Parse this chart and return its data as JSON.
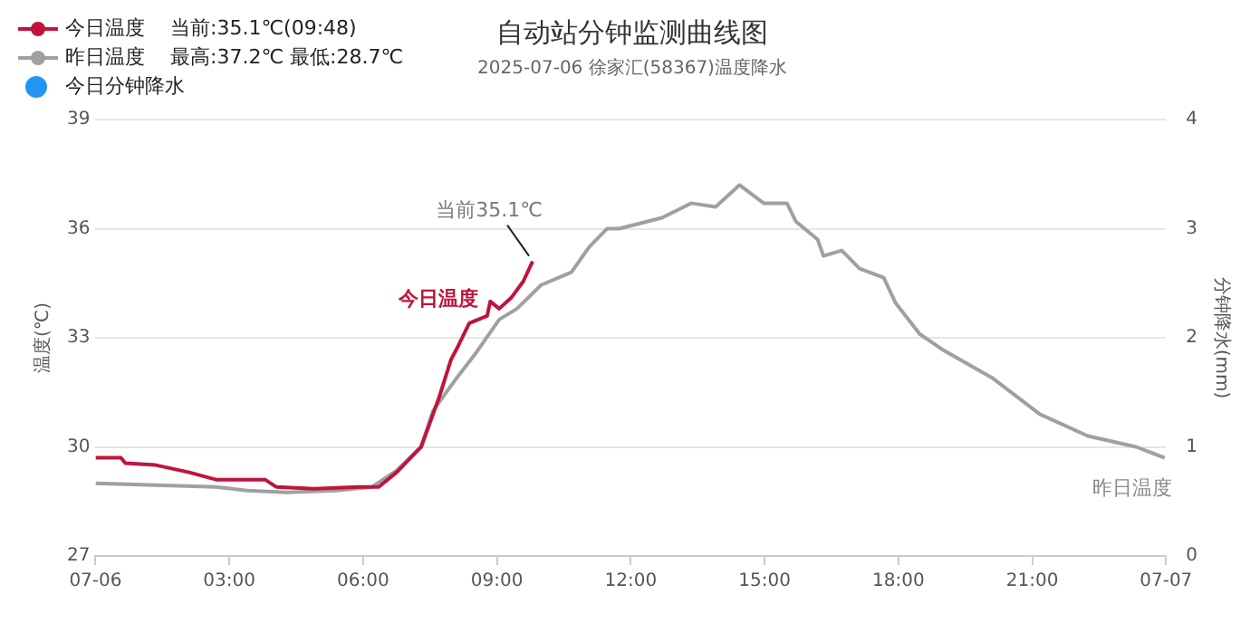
{
  "chart_data": {
    "type": "line",
    "title": "自动站分钟监测曲线图",
    "subtitle": "2025-07-06 徐家汇(58367)温度降水",
    "ylabel": "温度(℃)",
    "y2label": "分钟降水(mm)",
    "xlim": [
      0,
      24
    ],
    "xticks": [
      {
        "value": 0,
        "label": "07-06"
      },
      {
        "value": 3,
        "label": "03:00"
      },
      {
        "value": 6,
        "label": "06:00"
      },
      {
        "value": 9,
        "label": "09:00"
      },
      {
        "value": 12,
        "label": "12:00"
      },
      {
        "value": 15,
        "label": "15:00"
      },
      {
        "value": 18,
        "label": "18:00"
      },
      {
        "value": 21,
        "label": "21:00"
      },
      {
        "value": 24,
        "label": "07-07"
      }
    ],
    "ylim": [
      27,
      39
    ],
    "yticks": [
      27,
      30,
      33,
      36,
      39
    ],
    "y2lim": [
      0,
      4
    ],
    "y2ticks": [
      0,
      1,
      2,
      3,
      4
    ],
    "grid": "y",
    "legend": "top left",
    "marker": "none",
    "annotations": [
      "当前:35.1℃(09:48)",
      "最高:37.2℃ 最低:28.7℃",
      "今日温度",
      "昨日温度",
      {
        "text": "当前35.1℃",
        "x": 9.8,
        "y": 35.1
      }
    ],
    "series": [
      {
        "name": "今日温度",
        "color": "#c0143c",
        "x": [
          0,
          0.57,
          0.67,
          1.35,
          2.1,
          2.7,
          3.8,
          4.05,
          4.9,
          5.9,
          6.35,
          6.75,
          7.3,
          7.45,
          7.7,
          7.97,
          8.1,
          8.38,
          8.78,
          8.85,
          9.05,
          9.32,
          9.59,
          9.8
        ],
        "values": [
          29.7,
          29.7,
          29.55,
          29.5,
          29.3,
          29.1,
          29.1,
          28.9,
          28.85,
          28.9,
          28.9,
          29.3,
          30,
          30.5,
          31.35,
          32.4,
          32.7,
          33.4,
          33.6,
          34,
          33.8,
          34.1,
          34.55,
          35.1
        ]
      },
      {
        "name": "昨日温度",
        "color": "#a0a0a0",
        "x": [
          0,
          2.7,
          3.4,
          4.3,
          5.4,
          6.2,
          6.75,
          7.3,
          7.57,
          8.1,
          8.51,
          9.05,
          9.45,
          9.99,
          10.67,
          11.07,
          11.47,
          11.74,
          12.7,
          13.36,
          13.9,
          14.44,
          14.98,
          15.5,
          15.7,
          16.19,
          16.32,
          16.73,
          17.13,
          17.67,
          17.94,
          18.48,
          19.02,
          20.1,
          21.17,
          22.25,
          23.33,
          23.97
        ],
        "values": [
          29,
          28.9,
          28.8,
          28.75,
          28.8,
          28.9,
          29.35,
          30,
          31,
          31.9,
          32.55,
          33.5,
          33.8,
          34.45,
          34.8,
          35.5,
          36,
          36,
          36.3,
          36.7,
          36.6,
          37.2,
          36.7,
          36.7,
          36.2,
          35.7,
          35.25,
          35.4,
          34.9,
          34.65,
          33.95,
          33.1,
          32.65,
          31.9,
          30.9,
          30.3,
          30,
          29.7
        ]
      },
      {
        "name": "今日分钟降水",
        "color": "#2196f3",
        "marker": "circle"
      }
    ]
  }
}
